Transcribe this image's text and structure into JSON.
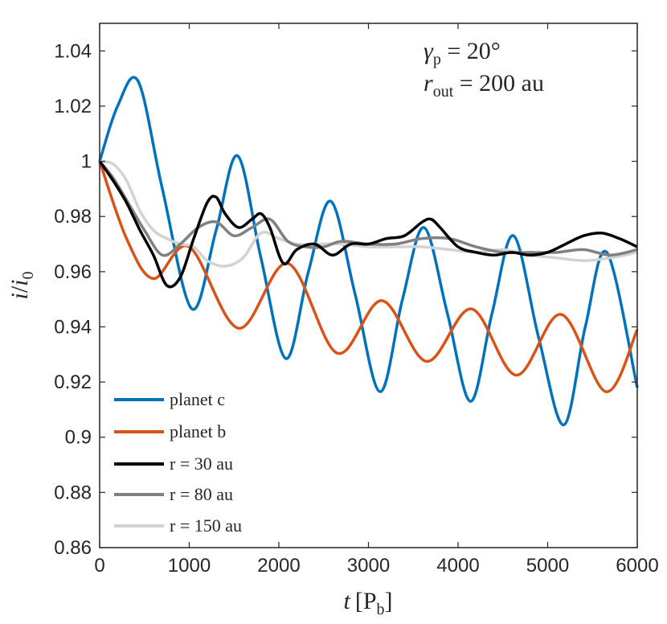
{
  "chart_data": {
    "type": "line",
    "xlabel": "t [P_b]",
    "ylabel": "i/i_0",
    "xlabel_parts": {
      "var": "t",
      "open": "[",
      "unit": "P",
      "sub": "b",
      "close": "]"
    },
    "ylabel_parts": {
      "num": "i",
      "slash": "/",
      "den": "i",
      "sub": "0"
    },
    "xlim": [
      0,
      6000
    ],
    "ylim": [
      0.86,
      1.05
    ],
    "xticks": [
      0,
      1000,
      2000,
      3000,
      4000,
      5000,
      6000
    ],
    "xtick_labels": [
      "0",
      "1000",
      "2000",
      "3000",
      "4000",
      "5000",
      "6000"
    ],
    "yticks": [
      0.86,
      0.88,
      0.9,
      0.92,
      0.94,
      0.96,
      0.98,
      1.0,
      1.02,
      1.04
    ],
    "ytick_labels": [
      "0.86",
      "0.88",
      "0.9",
      "0.92",
      "0.94",
      "0.96",
      "0.98",
      "1",
      "1.02",
      "1.04"
    ],
    "annotations": [
      {
        "var": "γ",
        "sub": "p",
        "eq": " = 20°"
      },
      {
        "var": "r",
        "sub": "out",
        "eq": " = 200 au"
      }
    ],
    "legend_position": "bottom-left",
    "series": [
      {
        "name": "planet c",
        "color": "#0072BD",
        "x": [
          0,
          200,
          430,
          700,
          1030,
          1300,
          1540,
          1800,
          2080,
          2330,
          2580,
          2850,
          3130,
          3380,
          3620,
          3880,
          4140,
          4380,
          4620,
          4900,
          5180,
          5420,
          5660,
          6000
        ],
        "y": [
          1.0,
          1.02,
          1.029,
          0.99,
          0.9465,
          0.975,
          1.002,
          0.965,
          0.9285,
          0.96,
          0.9855,
          0.952,
          0.9165,
          0.95,
          0.976,
          0.945,
          0.913,
          0.945,
          0.973,
          0.936,
          0.9045,
          0.94,
          0.967,
          0.918
        ]
      },
      {
        "name": "planet b",
        "color": "#D95319",
        "x": [
          0,
          300,
          600,
          1000,
          1550,
          2100,
          2650,
          3150,
          3650,
          4150,
          4650,
          5150,
          5650,
          6000
        ],
        "y": [
          1.0,
          0.972,
          0.9575,
          0.969,
          0.9395,
          0.963,
          0.9305,
          0.9495,
          0.9275,
          0.9465,
          0.9225,
          0.9445,
          0.9165,
          0.939
        ]
      },
      {
        "name": "r = 30 au",
        "color": "#000000",
        "x": [
          0,
          150,
          300,
          450,
          600,
          750,
          900,
          1050,
          1200,
          1300,
          1400,
          1550,
          1700,
          1800,
          1900,
          2050,
          2200,
          2400,
          2600,
          2800,
          3000,
          3200,
          3400,
          3600,
          3700,
          3800,
          4000,
          4200,
          4400,
          4600,
          4800,
          5000,
          5200,
          5400,
          5600,
          5800,
          6000
        ],
        "y": [
          1.0,
          0.993,
          0.985,
          0.975,
          0.966,
          0.955,
          0.958,
          0.972,
          0.985,
          0.987,
          0.981,
          0.976,
          0.979,
          0.981,
          0.976,
          0.963,
          0.968,
          0.97,
          0.966,
          0.97,
          0.97,
          0.972,
          0.973,
          0.978,
          0.979,
          0.976,
          0.969,
          0.967,
          0.966,
          0.967,
          0.966,
          0.967,
          0.97,
          0.973,
          0.974,
          0.972,
          0.969
        ]
      },
      {
        "name": "r = 80 au",
        "color": "#808080",
        "x": [
          0,
          150,
          300,
          500,
          700,
          900,
          1100,
          1300,
          1500,
          1700,
          1900,
          2100,
          2300,
          2500,
          2700,
          3000,
          3300,
          3600,
          3900,
          4200,
          4500,
          4800,
          5100,
          5400,
          5700,
          6000
        ],
        "y": [
          1.0,
          0.994,
          0.986,
          0.975,
          0.966,
          0.97,
          0.976,
          0.978,
          0.973,
          0.976,
          0.979,
          0.971,
          0.969,
          0.969,
          0.971,
          0.97,
          0.97,
          0.972,
          0.972,
          0.969,
          0.967,
          0.967,
          0.967,
          0.968,
          0.966,
          0.968
        ]
      },
      {
        "name": "r = 150 au",
        "color": "#D3D3D3",
        "x": [
          0,
          150,
          300,
          450,
          600,
          750,
          900,
          1050,
          1200,
          1400,
          1600,
          1800,
          2000,
          2200,
          2400,
          2700,
          3000,
          3300,
          3600,
          3900,
          4200,
          4500,
          4800,
          5100,
          5400,
          5700,
          6000
        ],
        "y": [
          1.0,
          0.999,
          0.993,
          0.982,
          0.975,
          0.972,
          0.97,
          0.969,
          0.964,
          0.962,
          0.965,
          0.974,
          0.972,
          0.97,
          0.97,
          0.97,
          0.969,
          0.969,
          0.969,
          0.968,
          0.967,
          0.968,
          0.966,
          0.965,
          0.964,
          0.965,
          0.967
        ]
      }
    ]
  }
}
